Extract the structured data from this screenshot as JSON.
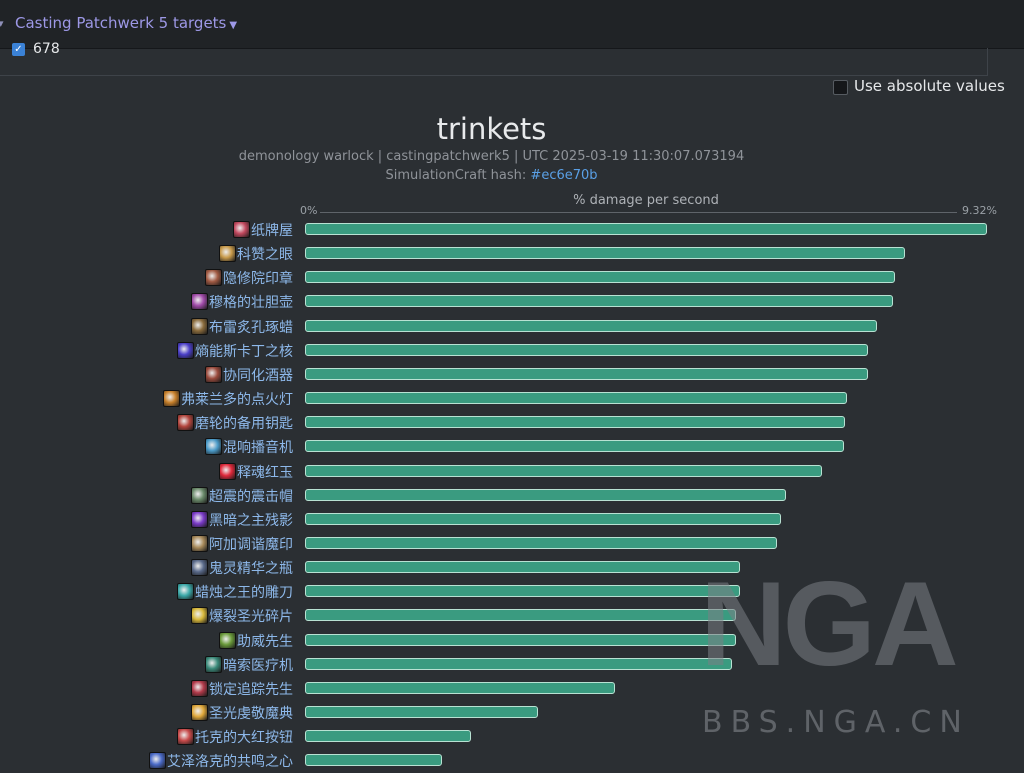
{
  "topbar": {
    "cast_label": "Casting Patchwerk 5 targets"
  },
  "filter": {
    "checkbox_value": "678"
  },
  "absolute_toggle": {
    "label": "Use absolute values"
  },
  "chart_header": {
    "title": "trinkets",
    "subtitle": "demonology warlock | castingpatchwerk5 | UTC 2025-03-19 11:30:07.073194",
    "hash_prefix": "SimulationCraft hash: ",
    "hash_link": "#ec6e70b"
  },
  "watermark": {
    "logo": "NGA",
    "url": "BBS.NGA.CN"
  },
  "chart_data": {
    "type": "bar",
    "orientation": "horizontal",
    "xlabel": "% damage per second",
    "xlim": [
      0,
      9.32
    ],
    "x_tick_labels": [
      "0%",
      "9.32%"
    ],
    "categories": [
      "纸牌屋",
      "科赞之眼",
      "隐修院印章",
      "穆格的壮胆壶",
      "布雷炙孔琢蜡",
      "熵能斯卡丁之核",
      "协同化酒器",
      "弗莱兰多的点火灯",
      "磨轮的备用钥匙",
      "混响播音机",
      "释魂红玉",
      "超震的震击帽",
      "黑暗之主残影",
      "阿加调谐魔印",
      "鬼灵精华之瓶",
      "蜡烛之王的雕刀",
      "爆裂圣光碎片",
      "助威先生",
      "暗索医疗机",
      "锁定追踪先生",
      "圣光虔敬魔典",
      "托克的大红按钮",
      "艾泽洛克的共鸣之心"
    ],
    "values": [
      9.32,
      8.2,
      8.06,
      8.04,
      7.81,
      7.7,
      7.69,
      7.41,
      7.38,
      7.36,
      7.07,
      6.57,
      6.5,
      6.45,
      5.95,
      5.95,
      5.89,
      5.89,
      5.84,
      4.24,
      3.18,
      2.27,
      1.87
    ],
    "icon_colors": [
      "#c2485e",
      "#c89a4a",
      "#a15a43",
      "#a04aa8",
      "#8a6b3c",
      "#4a3ec8",
      "#9a4a3c",
      "#c8802a",
      "#b2443c",
      "#4a9ac8",
      "#e0283a",
      "#6a8a6a",
      "#7a3ac8",
      "#a88a5a",
      "#5a6a8a",
      "#3aa8a8",
      "#d8b83a",
      "#6a9a3a",
      "#3a8a7a",
      "#b23a4a",
      "#e0a83a",
      "#c84a4a",
      "#4a6ac8"
    ]
  }
}
